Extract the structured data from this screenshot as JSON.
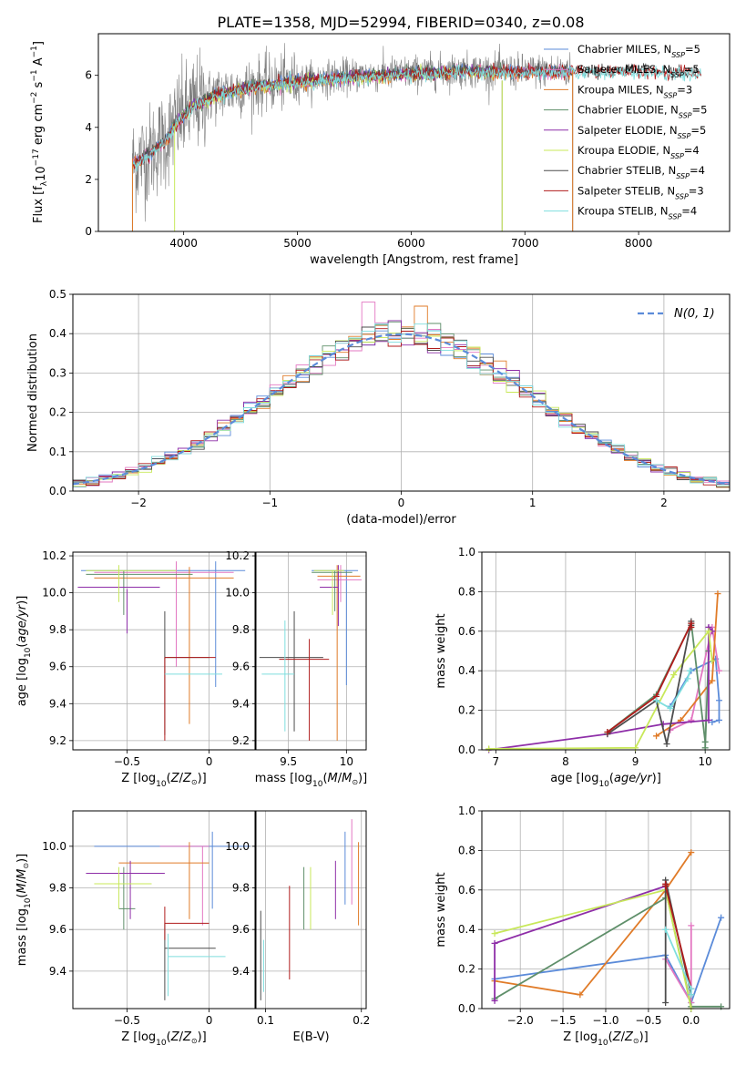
{
  "figure_title": "PLATE=1358, MJD=52994, FIBERID=0340, z=0.08",
  "colors": {
    "chabrier_miles": "#5b8bd9",
    "salpeter_miles": "#e377c2",
    "kroupa_miles": "#e07b28",
    "chabrier_elodie": "#5f8f6a",
    "salpeter_elodie": "#8e2ea8",
    "kroupa_elodie": "#c8e85a",
    "chabrier_stelib": "#4d4d4d",
    "salpeter_stelib": "#b01c1c",
    "kroupa_stelib": "#7fdede"
  },
  "chart_data": [
    {
      "id": "spectrum",
      "type": "line",
      "xlabel": "wavelength [Angstrom, rest frame]",
      "ylabel": "Flux [f",
      "xlim": [
        3250,
        8800
      ],
      "ylim": [
        0,
        7.6
      ],
      "xticks": [
        4000,
        5000,
        6000,
        7000,
        8000
      ],
      "yticks": [
        0,
        2,
        4,
        6
      ],
      "legend_position": "right",
      "grid": false,
      "series": [
        {
          "name": "Chabrier MILES, N",
          "sub": "SSP",
          "suffix": "=5",
          "color": "#5b8bd9",
          "x_range": [
            3550,
            7420
          ]
        },
        {
          "name": "Salpeter MILES, N",
          "sub": "SSP",
          "suffix": "=5",
          "color": "#e377c2",
          "x_range": [
            3550,
            7420
          ]
        },
        {
          "name": "Kroupa MILES, N",
          "sub": "SSP",
          "suffix": "=3",
          "color": "#e07b28",
          "x_range": [
            3550,
            7420
          ]
        },
        {
          "name": "Chabrier ELODIE, N",
          "sub": "SSP",
          "suffix": "=5",
          "color": "#5f8f6a",
          "x_range": [
            3900,
            6800
          ]
        },
        {
          "name": "Salpeter ELODIE, N",
          "sub": "SSP",
          "suffix": "=5",
          "color": "#8e2ea8",
          "x_range": [
            3900,
            6800
          ]
        },
        {
          "name": "Kroupa ELODIE, N",
          "sub": "SSP",
          "suffix": "=4",
          "color": "#c8e85a",
          "x_range": [
            3900,
            6800
          ]
        },
        {
          "name": "Chabrier STELIB, N",
          "sub": "SSP",
          "suffix": "=4",
          "color": "#4d4d4d",
          "x_range": [
            3550,
            8550
          ]
        },
        {
          "name": "Salpeter STELIB, N",
          "sub": "SSP",
          "suffix": "=3",
          "color": "#b01c1c",
          "x_range": [
            3550,
            8550
          ]
        },
        {
          "name": "Kroupa STELIB, N",
          "sub": "SSP",
          "suffix": "=4",
          "color": "#7fdede",
          "x_range": [
            3550,
            8550
          ]
        }
      ],
      "data_color": "#808080",
      "continuum": [
        [
          3550,
          2.6
        ],
        [
          3700,
          3.0
        ],
        [
          3850,
          3.6
        ],
        [
          3950,
          4.3
        ],
        [
          4100,
          4.9
        ],
        [
          4300,
          5.3
        ],
        [
          4600,
          5.6
        ],
        [
          5000,
          5.8
        ],
        [
          5500,
          6.0
        ],
        [
          6000,
          6.1
        ],
        [
          6500,
          6.2
        ],
        [
          7000,
          6.15
        ],
        [
          7500,
          6.2
        ],
        [
          8000,
          6.2
        ],
        [
          8550,
          6.1
        ]
      ]
    },
    {
      "id": "residuals",
      "type": "histogram",
      "xlabel": "(data-model)/error",
      "ylabel": "Normed distribution",
      "xlim": [
        -2.5,
        2.5
      ],
      "ylim": [
        0,
        0.5
      ],
      "xticks": [
        -2,
        -1,
        0,
        1,
        2
      ],
      "yticks": [
        0.0,
        0.1,
        0.2,
        0.3,
        0.4,
        0.5
      ],
      "grid": true,
      "legend_position": "top-right",
      "normal_label": "N(0, 1)",
      "normal_color": "#5b8bd9",
      "bin_width": 0.1
    },
    {
      "id": "age_vs_Z",
      "type": "errorbar",
      "xlabel": "Z [log10(Z/Zsun)]",
      "ylabel": "age [log10(age/yr)]",
      "xlim": [
        -0.83,
        0.28
      ],
      "ylim": [
        9.15,
        10.22
      ],
      "xticks": [
        -0.5,
        0.0
      ],
      "yticks": [
        9.2,
        9.4,
        9.6,
        9.8,
        10.0,
        10.2
      ],
      "grid": true,
      "points": [
        {
          "model": "chabrier_miles",
          "x": 0.04,
          "y": 9.83,
          "xerr": [
            0.05,
            0.05
          ],
          "yerr": [
            0.34,
            0.34
          ],
          "hx": [
            -0.78,
            0.22
          ],
          "hy": 10.12
        },
        {
          "model": "salpeter_miles",
          "x": -0.2,
          "y": 9.9,
          "hx": [
            -0.7,
            0.15
          ],
          "hy": 10.11,
          "xerr": [
            0,
            0
          ],
          "yerr": [
            0.3,
            0.27
          ]
        },
        {
          "model": "kroupa_miles",
          "x": -0.12,
          "y": 9.72,
          "hx": [
            -0.7,
            0.15
          ],
          "hy": 10.08,
          "xerr": [
            0,
            0
          ],
          "yerr": [
            0.43,
            0.42
          ]
        },
        {
          "model": "chabrier_elodie",
          "x": -0.52,
          "y": 10.0,
          "xerr": [
            0,
            0
          ],
          "yerr": [
            0.12,
            0.12
          ],
          "hx": [
            -0.75,
            -0.1
          ],
          "hy": 10.1
        },
        {
          "model": "salpeter_elodie",
          "x": -0.5,
          "y": 9.9,
          "xerr": [
            0,
            0
          ],
          "yerr": [
            0.12,
            0.12
          ],
          "hx": [
            -0.8,
            -0.3
          ],
          "hy": 10.03
        },
        {
          "model": "kroupa_elodie",
          "x": -0.55,
          "y": 10.05,
          "xerr": [
            0,
            0
          ],
          "yerr": [
            0.1,
            0.1
          ],
          "hx": [
            -0.75,
            -0.2
          ],
          "hy": 10.12
        },
        {
          "model": "chabrier_stelib",
          "x": -0.27,
          "y": 9.65,
          "xerr": [
            0.0,
            0.27
          ],
          "yerr": [
            0.42,
            0.25
          ],
          "hx": [
            -0.27,
            0.0
          ],
          "hy": 9.65
        },
        {
          "model": "salpeter_stelib",
          "x": -0.27,
          "y": 9.6,
          "xerr": [
            0,
            0.3
          ],
          "yerr": [
            0.4,
            0.05
          ],
          "hx": [
            -0.27,
            0.04
          ],
          "hy": 9.65
        },
        {
          "model": "kroupa_stelib",
          "x": 0.0,
          "y": 9.56,
          "xerr": [
            0.27,
            0.08
          ],
          "yerr": [
            0.0,
            0.0
          ],
          "hx": [
            -0.27,
            0.08
          ],
          "hy": 9.56
        }
      ]
    },
    {
      "id": "age_vs_mass",
      "type": "errorbar",
      "xlabel": "mass [log10(M/Msun)]",
      "ylabel": "",
      "xlim": [
        9.22,
        10.17
      ],
      "ylim": [
        9.15,
        10.22
      ],
      "xticks": [
        9.5,
        10.0
      ],
      "yticks": [
        9.2,
        9.4,
        9.6,
        9.8,
        10.0,
        10.2
      ],
      "grid": true,
      "segments": [
        {
          "model": "chabrier_miles",
          "h": [
            9.7,
            10.1,
            10.12
          ],
          "v": [
            10.0,
            9.5,
            10.12
          ]
        },
        {
          "model": "salpeter_miles",
          "h": [
            9.75,
            10.13,
            10.07
          ],
          "v": [
            9.95,
            9.95,
            10.15
          ]
        },
        {
          "model": "kroupa_miles",
          "h": [
            9.75,
            10.12,
            10.09
          ],
          "v": [
            9.92,
            9.2,
            10.15
          ]
        },
        {
          "model": "chabrier_elodie",
          "h": [
            9.7,
            10.05,
            10.11
          ],
          "v": [
            9.9,
            9.9,
            10.12
          ]
        },
        {
          "model": "salpeter_elodie",
          "h": [
            9.77,
            9.93,
            10.03
          ],
          "v": [
            9.93,
            9.82,
            10.15
          ]
        },
        {
          "model": "kroupa_elodie",
          "h": [
            9.72,
            9.98,
            10.12
          ],
          "v": [
            9.88,
            9.88,
            10.12
          ]
        },
        {
          "model": "chabrier_stelib",
          "h": [
            9.25,
            9.8,
            9.65
          ],
          "v": [
            9.55,
            9.25,
            9.9
          ]
        },
        {
          "model": "salpeter_stelib",
          "h": [
            9.42,
            9.85,
            9.64
          ],
          "v": [
            9.68,
            9.2,
            9.75
          ]
        },
        {
          "model": "kroupa_stelib",
          "h": [
            9.27,
            9.55,
            9.56
          ],
          "v": [
            9.47,
            9.25,
            9.85
          ]
        }
      ]
    },
    {
      "id": "massweight_vs_age",
      "type": "line",
      "xlabel": "age [log10(age/yr)]",
      "ylabel": "mass weight",
      "xlim": [
        6.8,
        10.35
      ],
      "ylim": [
        0,
        1.0
      ],
      "xticks": [
        7,
        8,
        9,
        10
      ],
      "yticks": [
        0.0,
        0.2,
        0.4,
        0.6,
        0.8,
        1.0
      ],
      "grid": true,
      "series": [
        {
          "model": "chabrier_miles",
          "x": [
            9.5,
            9.8,
            10.15,
            10.2,
            10.2,
            10.1
          ],
          "y": [
            0.22,
            0.4,
            0.46,
            0.25,
            0.15,
            0.14
          ]
        },
        {
          "model": "salpeter_miles",
          "x": [
            9.5,
            9.8,
            10.1,
            10.2
          ],
          "y": [
            0.1,
            0.15,
            0.62,
            0.4
          ]
        },
        {
          "model": "kroupa_miles",
          "x": [
            9.3,
            9.65,
            10.1,
            10.18
          ],
          "y": [
            0.07,
            0.15,
            0.35,
            0.79
          ]
        },
        {
          "model": "chabrier_elodie",
          "x": [
            8.6,
            9.3,
            9.8,
            10.0,
            10.0,
            10.05
          ],
          "y": [
            0.09,
            0.28,
            0.64,
            0.04,
            0.01,
            0.5
          ]
        },
        {
          "model": "salpeter_elodie",
          "x": [
            6.9,
            8.6,
            9.4,
            10.05,
            10.05,
            10.1
          ],
          "y": [
            0.0,
            0.08,
            0.13,
            0.15,
            0.62,
            0.6
          ]
        },
        {
          "model": "kroupa_elodie",
          "x": [
            6.9,
            9.0,
            9.55,
            10.05,
            10.1
          ],
          "y": [
            0.005,
            0.01,
            0.38,
            0.6,
            0.45
          ]
        },
        {
          "model": "chabrier_stelib",
          "x": [
            8.6,
            9.3,
            9.45,
            9.8,
            9.8
          ],
          "y": [
            0.08,
            0.25,
            0.03,
            0.65,
            0.63
          ]
        },
        {
          "model": "salpeter_stelib",
          "x": [
            8.6,
            9.3,
            9.8,
            9.8
          ],
          "y": [
            0.09,
            0.27,
            0.64,
            0.62
          ]
        },
        {
          "model": "kroupa_stelib",
          "x": [
            9.3,
            9.5,
            9.75,
            9.78
          ],
          "y": [
            0.25,
            0.21,
            0.36,
            0.4
          ]
        }
      ]
    },
    {
      "id": "mass_vs_Z",
      "type": "errorbar",
      "xlabel": "Z [log10(Z/Zsun)]",
      "ylabel": "mass [log10(M/Msun)]",
      "xlim": [
        -0.83,
        0.28
      ],
      "ylim": [
        9.22,
        10.17
      ],
      "xticks": [
        -0.5,
        0.0
      ],
      "yticks": [
        9.4,
        9.6,
        9.8,
        10.0
      ],
      "grid": true,
      "segments": [
        {
          "model": "chabrier_miles",
          "h": [
            -0.7,
            0.25,
            10.0
          ],
          "v": [
            0.02,
            9.7,
            10.07
          ]
        },
        {
          "model": "salpeter_miles",
          "h": [
            -0.3,
            0.0,
            10.0
          ],
          "v": [
            -0.04,
            9.62,
            10.0
          ]
        },
        {
          "model": "kroupa_miles",
          "h": [
            -0.55,
            0.0,
            9.92
          ],
          "v": [
            -0.12,
            9.65,
            10.02
          ]
        },
        {
          "model": "chabrier_elodie",
          "h": [
            -0.55,
            -0.45,
            9.7
          ],
          "v": [
            -0.52,
            9.6,
            9.9
          ]
        },
        {
          "model": "salpeter_elodie",
          "h": [
            -0.75,
            -0.27,
            9.87
          ],
          "v": [
            -0.48,
            9.65,
            9.93
          ]
        },
        {
          "model": "kroupa_elodie",
          "h": [
            -0.7,
            -0.35,
            9.82
          ],
          "v": [
            -0.55,
            9.7,
            9.9
          ]
        },
        {
          "model": "chabrier_stelib",
          "h": [
            -0.27,
            0.04,
            9.51
          ],
          "v": [
            -0.27,
            9.26,
            9.63
          ]
        },
        {
          "model": "salpeter_stelib",
          "h": [
            -0.27,
            0.0,
            9.63
          ],
          "v": [
            -0.27,
            9.55,
            9.71
          ]
        },
        {
          "model": "kroupa_stelib",
          "h": [
            -0.25,
            0.1,
            9.47
          ],
          "v": [
            -0.25,
            9.28,
            9.58
          ]
        }
      ]
    },
    {
      "id": "mass_vs_ebv",
      "type": "errorbar",
      "xlabel": "E(B-V)",
      "ylabel": "",
      "xlim": [
        0.09,
        0.205
      ],
      "ylim": [
        9.22,
        10.17
      ],
      "xticks": [
        0.1,
        0.2
      ],
      "yticks": [
        9.4,
        9.6,
        9.8,
        10.0
      ],
      "grid": true,
      "segments": [
        {
          "model": "chabrier_miles",
          "x": 0.183,
          "y": [
            9.72,
            10.07
          ]
        },
        {
          "model": "salpeter_miles",
          "x": 0.19,
          "y": [
            9.72,
            10.13
          ]
        },
        {
          "model": "kroupa_miles",
          "x": 0.197,
          "y": [
            9.62,
            10.02
          ]
        },
        {
          "model": "chabrier_elodie",
          "x": 0.14,
          "y": [
            9.6,
            9.9
          ]
        },
        {
          "model": "salpeter_elodie",
          "x": 0.173,
          "y": [
            9.65,
            9.93
          ]
        },
        {
          "model": "kroupa_elodie",
          "x": 0.147,
          "y": [
            9.6,
            9.9
          ]
        },
        {
          "model": "chabrier_stelib",
          "x": 0.095,
          "y": [
            9.26,
            9.69
          ]
        },
        {
          "model": "salpeter_stelib",
          "x": 0.125,
          "y": [
            9.36,
            9.81
          ]
        },
        {
          "model": "kroupa_stelib",
          "x": 0.098,
          "y": [
            9.3,
            9.55
          ]
        }
      ]
    },
    {
      "id": "massweight_vs_Z",
      "type": "line",
      "xlabel": "Z [log10(Z/Zsun)]",
      "ylabel": "mass weight",
      "xlim": [
        -2.45,
        0.45
      ],
      "ylim": [
        0,
        1.0
      ],
      "xticks": [
        -2.0,
        -1.5,
        -1.0,
        -0.5,
        0.0
      ],
      "yticks": [
        0.0,
        0.2,
        0.4,
        0.6,
        0.8,
        1.0
      ],
      "grid": true,
      "series": [
        {
          "model": "chabrier_miles",
          "x": [
            -2.3,
            -0.3,
            0.0,
            0.35
          ],
          "y": [
            0.15,
            0.27,
            0.03,
            0.46
          ]
        },
        {
          "model": "salpeter_miles",
          "x": [
            -0.3,
            0.0,
            0.0
          ],
          "y": [
            0.25,
            0.03,
            0.42
          ]
        },
        {
          "model": "kroupa_miles",
          "x": [
            -2.3,
            -1.3,
            -0.3,
            0.0
          ],
          "y": [
            0.14,
            0.07,
            0.6,
            0.79
          ]
        },
        {
          "model": "chabrier_elodie",
          "x": [
            -2.3,
            -0.3,
            -0.3,
            0.0,
            0.35
          ],
          "y": [
            0.05,
            0.56,
            0.6,
            0.01,
            0.01
          ]
        },
        {
          "model": "salpeter_elodie",
          "x": [
            -2.3,
            -2.3,
            -0.3,
            -0.3
          ],
          "y": [
            0.04,
            0.33,
            0.62,
            0.6
          ]
        },
        {
          "model": "kroupa_elodie",
          "x": [
            -2.3,
            -0.3,
            0.0
          ],
          "y": [
            0.38,
            0.6,
            0.0
          ]
        },
        {
          "model": "chabrier_stelib",
          "x": [
            -0.3,
            -0.3,
            0.0
          ],
          "y": [
            0.03,
            0.65,
            0.07
          ]
        },
        {
          "model": "salpeter_stelib",
          "x": [
            -0.3,
            -0.3,
            0.0
          ],
          "y": [
            0.63,
            0.62,
            0.1
          ]
        },
        {
          "model": "kroupa_stelib",
          "x": [
            -0.3,
            0.0,
            0.0
          ],
          "y": [
            0.4,
            0.1,
            0.07
          ]
        }
      ]
    }
  ]
}
